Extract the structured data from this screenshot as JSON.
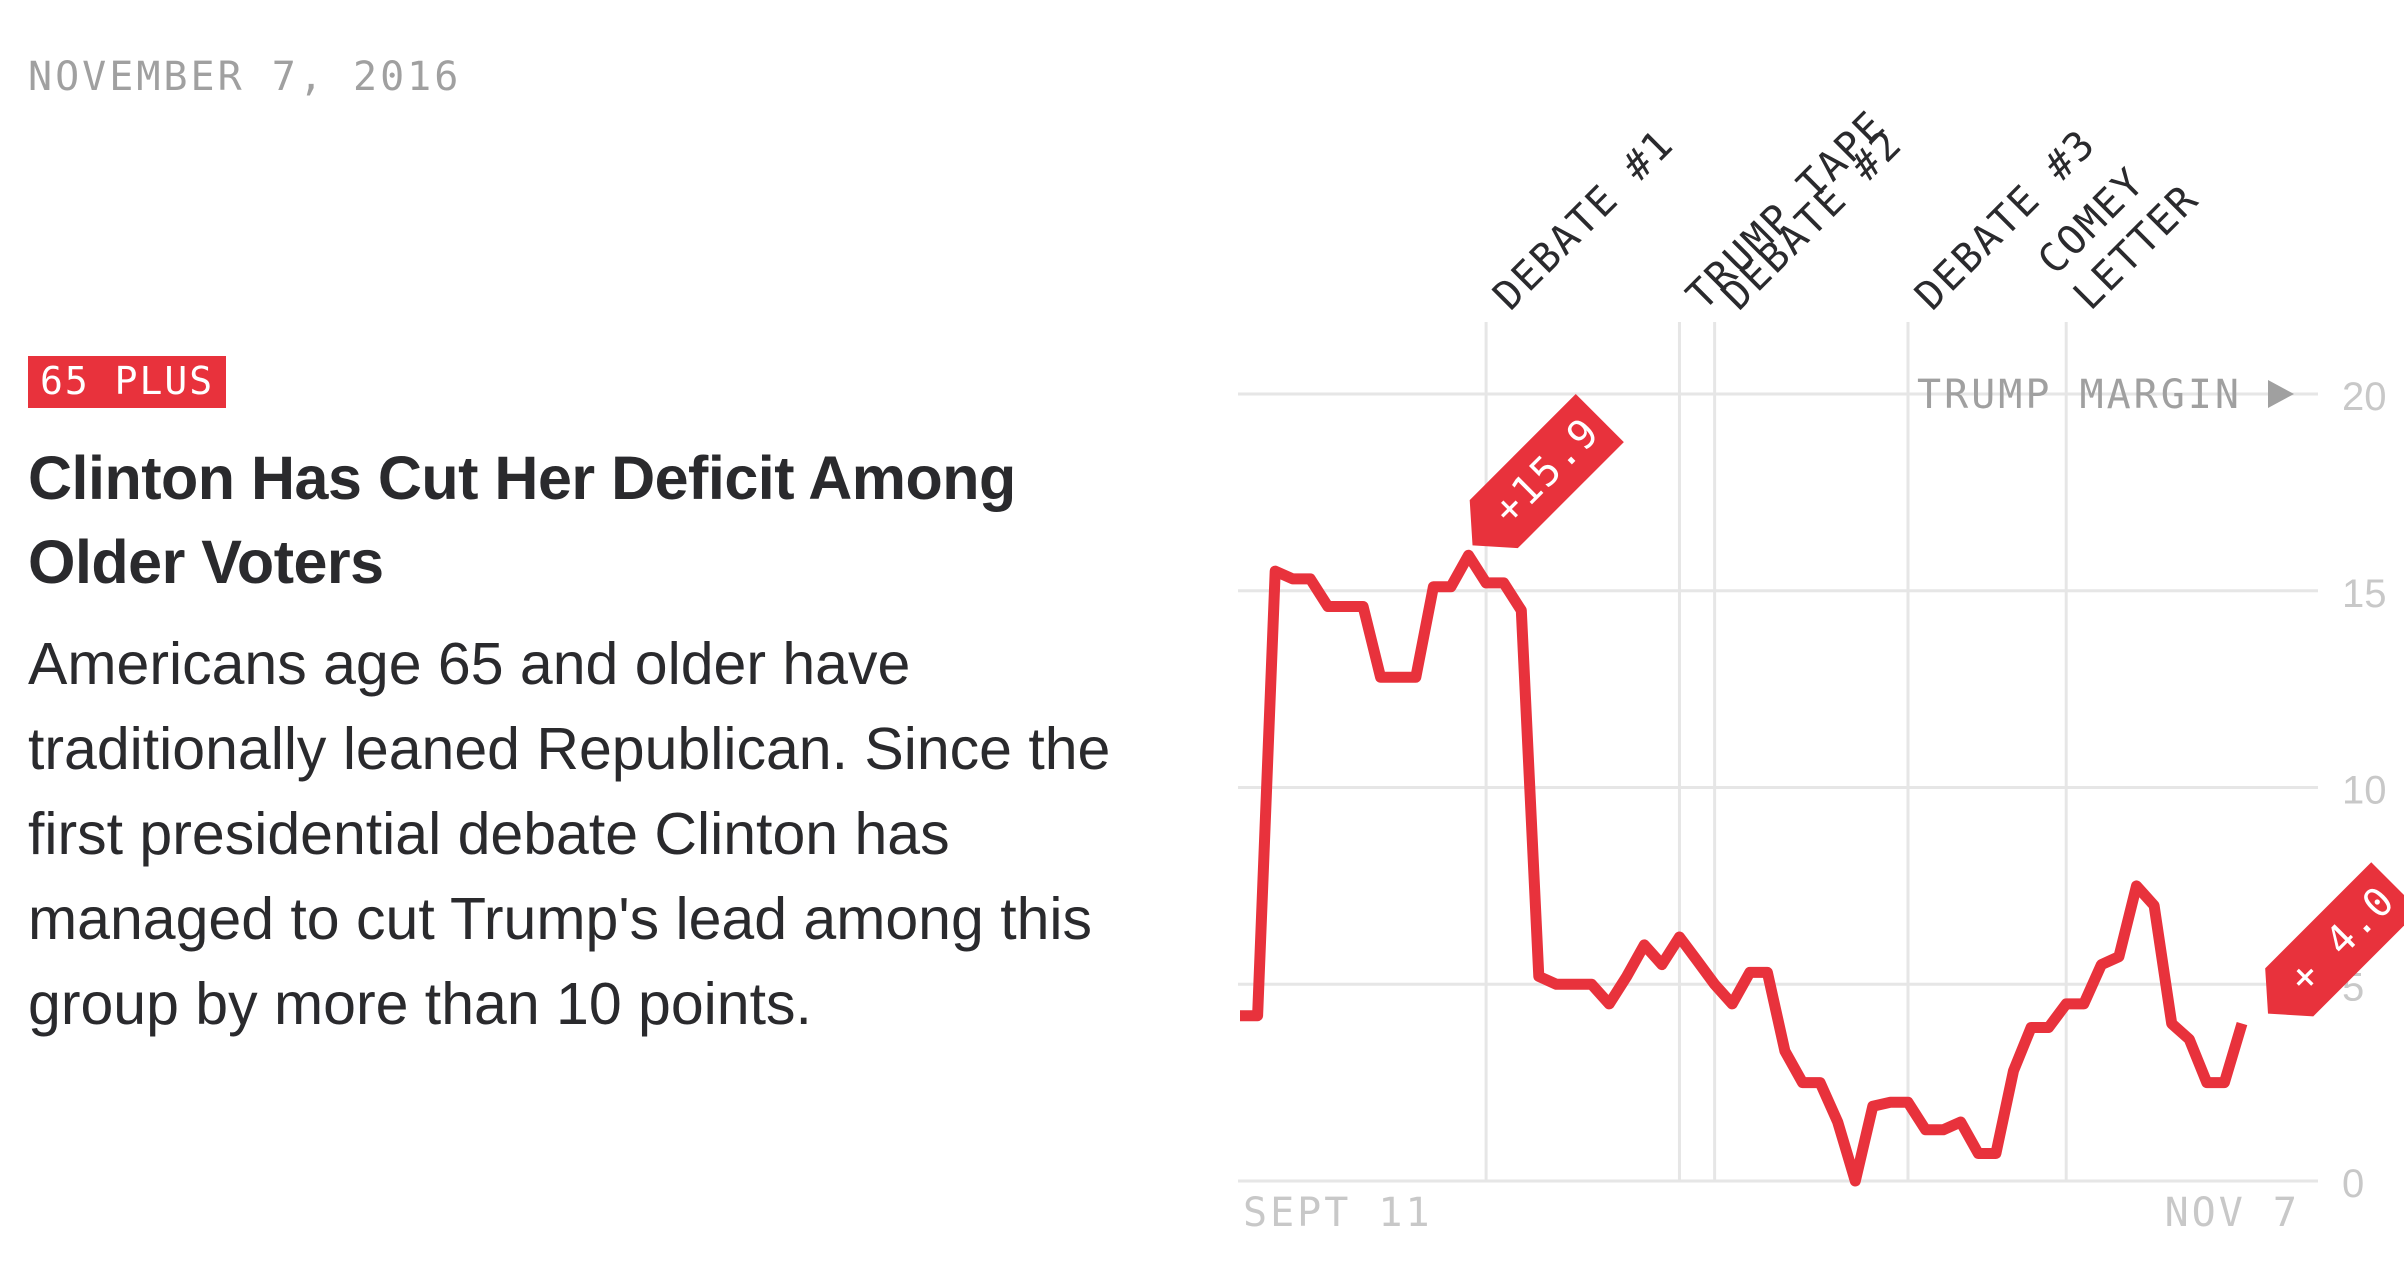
{
  "date": "NOVEMBER 7, 2016",
  "badge": "65 PLUS",
  "headline": "Clinton Has Cut Her Deficit Among Older Voters",
  "description": "Americans age 65 and older have traditionally leaned Republican. Since the first presidential debate Clinton has managed to cut Trump's lead among this group by more than 10 points.",
  "colors": {
    "accent": "#e8323c",
    "text": "#2a2a2d",
    "muted": "#a0a0a0",
    "grid": "#e6e6e6"
  },
  "chart_data": {
    "type": "line",
    "series": [
      {
        "values": [
          4.2,
          4.2,
          15.5,
          15.3,
          15.3,
          14.6,
          14.6,
          14.6,
          12.8,
          12.8,
          12.8,
          15.1,
          15.1,
          15.9,
          15.2,
          15.2,
          14.5,
          5.2,
          5.0,
          5.0,
          5.0,
          4.5,
          5.2,
          6.0,
          5.5,
          6.2,
          5.6,
          5.0,
          4.5,
          5.3,
          5.3,
          3.3,
          2.5,
          2.5,
          1.5,
          0.0,
          1.9,
          2.0,
          2.0,
          1.3,
          1.3,
          1.5,
          0.7,
          0.7,
          2.8,
          3.9,
          3.9,
          4.5,
          4.5,
          5.5,
          5.7,
          7.5,
          7.0,
          4.0,
          3.6,
          2.5,
          2.5,
          4.0
        ]
      }
    ],
    "x_start_label": "SEPT 11",
    "x_end_label": "NOV 7",
    "ylim": [
      0,
      20
    ],
    "y_ticks": [
      "0",
      "5",
      "10",
      "15",
      "20"
    ],
    "y_axis_title": "TRUMP MARGIN",
    "grid": true,
    "events": [
      {
        "label": "DEBATE #1",
        "index": 14
      },
      {
        "label": "TRUMP TAPE",
        "index": 25
      },
      {
        "label": "DEBATE #2",
        "index": 27
      },
      {
        "label": "DEBATE #3",
        "index": 38
      },
      {
        "label": "COMEY LETTER",
        "index": 47
      }
    ],
    "annotations": [
      {
        "text": "+15.9",
        "index": 13,
        "value": 15.9
      },
      {
        "text": "+ 4.0",
        "index": 57,
        "value": 4.0
      }
    ]
  }
}
